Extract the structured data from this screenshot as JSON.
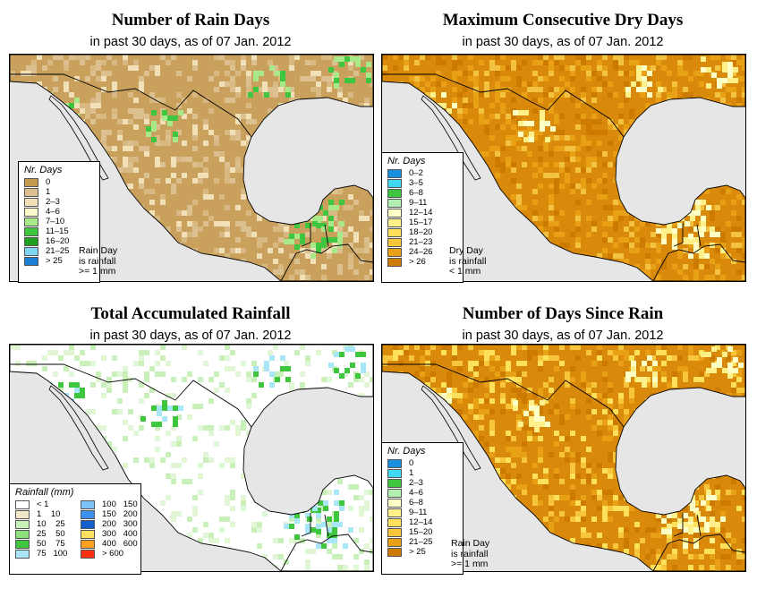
{
  "panels": [
    {
      "title": "Number of Rain Days",
      "subtitle": "in past 30 days, as of  07 Jan. 2012",
      "base_color": "#c9a05c",
      "land_colors": [
        "#c9a05c",
        "#dcc090",
        "#c9a05c",
        "#f2e1b8",
        "#c9a05c",
        "#d7b981"
      ],
      "legend": {
        "title": "Nr. Days",
        "items": [
          {
            "label": "0",
            "color": "#c49a4e"
          },
          {
            "label": "1",
            "color": "#dcc090"
          },
          {
            "label": "2–3",
            "color": "#f2e1b8"
          },
          {
            "label": "4–6",
            "color": "#fbfbcc"
          },
          {
            "label": "7–10",
            "color": "#a8ea8a"
          },
          {
            "label": "11–15",
            "color": "#3ec63e"
          },
          {
            "label": "16–20",
            "color": "#1f9e1f"
          },
          {
            "label": "21–25",
            "color": "#7fd4f4"
          },
          {
            "label": "> 25",
            "color": "#1a7fd4"
          }
        ]
      },
      "note": [
        "Rain Day",
        "is rainfall",
        ">= 1 mm"
      ]
    },
    {
      "title": "Maximum Consecutive Dry Days",
      "subtitle": "in past 30 days, as of  07 Jan. 2012",
      "base_color": "#d98a0a",
      "land_colors": [
        "#d98a0a",
        "#e8a014",
        "#d98a0a",
        "#f2c240",
        "#cc7a00",
        "#e8a014"
      ],
      "legend": {
        "title": "Nr. Days",
        "items": [
          {
            "label": "0–2",
            "color": "#1a8fe0"
          },
          {
            "label": "3–5",
            "color": "#3fd8f0"
          },
          {
            "label": "6–8",
            "color": "#3ec63e"
          },
          {
            "label": "9–11",
            "color": "#b2f0b2"
          },
          {
            "label": "12–14",
            "color": "#ffffc8"
          },
          {
            "label": "15–17",
            "color": "#fff08a"
          },
          {
            "label": "18–20",
            "color": "#ffe05a"
          },
          {
            "label": "21–23",
            "color": "#f8c63a"
          },
          {
            "label": "24–26",
            "color": "#e8a014"
          },
          {
            "label": "> 26",
            "color": "#cc7a00"
          }
        ]
      },
      "note": [
        "Dry Day",
        "is rainfall",
        "< 1 mm"
      ]
    },
    {
      "title": "Total Accumulated Rainfall",
      "subtitle": "in past 30 days, as of  07 Jan. 2012",
      "base_color": "#ffffff",
      "land_colors": [
        "#ffffff",
        "#ffffff",
        "#c8f0b8",
        "#ffffff",
        "#e0f6d4",
        "#ffffff"
      ],
      "legend": {
        "title": "Rainfall (mm)",
        "items": [
          {
            "label": "< 1",
            "color": "#ffffff"
          },
          {
            "label": "1    10",
            "color": "#f2e6c8"
          },
          {
            "label": "10    25",
            "color": "#c8f0b8"
          },
          {
            "label": "25    50",
            "color": "#8ee07a"
          },
          {
            "label": "50    75",
            "color": "#3ec63e"
          },
          {
            "label": "75   100",
            "color": "#a8e6f8"
          },
          {
            "label": "100   150",
            "color": "#7ac4f8"
          },
          {
            "label": "150   200",
            "color": "#3c90f0"
          },
          {
            "label": "200   300",
            "color": "#1460d0"
          },
          {
            "label": "300   400",
            "color": "#ffe060"
          },
          {
            "label": "400   600",
            "color": "#ffa020"
          },
          {
            "label": "> 600",
            "color": "#ff3010"
          }
        ]
      }
    },
    {
      "title": "Number of Days Since Rain",
      "subtitle": "in past 30 days, as of  07 Jan. 2012",
      "base_color": "#d98a0a",
      "land_colors": [
        "#d98a0a",
        "#e8a014",
        "#cc7a00",
        "#f8c63a",
        "#d98a0a",
        "#ffe05a"
      ],
      "legend": {
        "title": "Nr. Days",
        "items": [
          {
            "label": "0",
            "color": "#1a8fe0"
          },
          {
            "label": "1",
            "color": "#3fd8f0"
          },
          {
            "label": "2–3",
            "color": "#3ec63e"
          },
          {
            "label": "4–6",
            "color": "#b2f0b2"
          },
          {
            "label": "6–8",
            "color": "#ffffc8"
          },
          {
            "label": "9–11",
            "color": "#fff08a"
          },
          {
            "label": "12–14",
            "color": "#ffe05a"
          },
          {
            "label": "15–20",
            "color": "#f8c63a"
          },
          {
            "label": "21–25",
            "color": "#e8a014"
          },
          {
            "label": "> 25",
            "color": "#cc7a00"
          }
        ]
      },
      "note": [
        "Rain Day",
        "is rainfall",
        ">= 1 mm"
      ]
    }
  ],
  "colors": {
    "ocean": "#e6e6e6",
    "border": "#000000"
  }
}
